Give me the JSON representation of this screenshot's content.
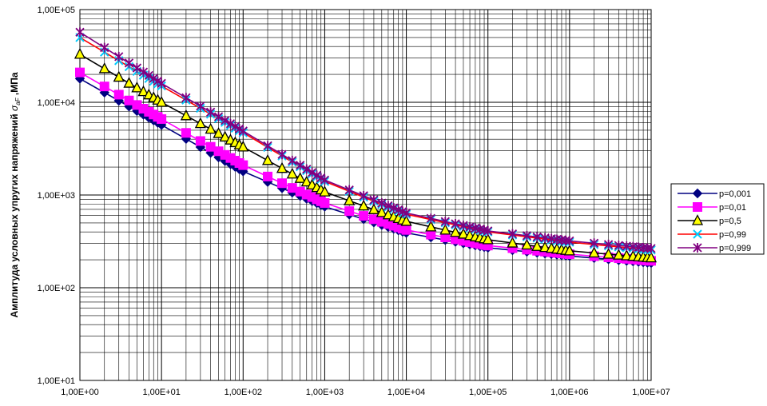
{
  "chart_data": {
    "type": "line",
    "title": "",
    "xlabel": "",
    "ylabel": "Амплитуда условных упругих напряжений σaF ,МПа",
    "ylabel_parts": {
      "prefix": "Амплитуда условных упругих напряжений ",
      "symbol": "σ",
      "subscript": "aF",
      "suffix": " ,МПа"
    },
    "x_scale": "log",
    "y_scale": "log",
    "xlim": [
      1,
      10000000
    ],
    "ylim": [
      10,
      100000
    ],
    "x_tick_labels": [
      "1,00E+00",
      "1,00E+01",
      "1,00E+02",
      "1,00E+03",
      "1,00E+04",
      "1,00E+05",
      "1,00E+06",
      "1,00E+07"
    ],
    "y_tick_labels": [
      "1,00E+01",
      "1,00E+02",
      "1,00E+03",
      "1,00E+04",
      "1,00E+05"
    ],
    "grid": "major and minor",
    "legend_position": "right",
    "series": [
      {
        "name": "p=0,001",
        "color": "#000080",
        "marker": "diamond",
        "x": [
          1,
          10,
          100,
          1000,
          10000,
          100000,
          1000000,
          10000000
        ],
        "y": [
          18000,
          5700,
          1800,
          750,
          390,
          270,
          220,
          185
        ]
      },
      {
        "name": "p=0,01",
        "color": "#ff00ff",
        "marker": "square",
        "x": [
          1,
          10,
          100,
          1000,
          10000,
          100000,
          1000000,
          10000000
        ],
        "y": [
          21000,
          6600,
          2100,
          820,
          420,
          285,
          230,
          195
        ]
      },
      {
        "name": "p=0,5",
        "color": "#000000",
        "marker": "triangle",
        "x": [
          1,
          10,
          100,
          1000,
          10000,
          100000,
          1000000,
          10000000
        ],
        "y": [
          33000,
          10000,
          3300,
          1080,
          520,
          330,
          250,
          210
        ]
      },
      {
        "name": "p=0,99",
        "color": "#ff0000",
        "marker": "x",
        "marker_color": "#00ccff",
        "x": [
          1,
          10,
          100,
          1000,
          10000,
          100000,
          1000000,
          10000000
        ],
        "y": [
          50000,
          15000,
          4700,
          1400,
          620,
          400,
          310,
          255
        ]
      },
      {
        "name": "p=0,999",
        "color": "#800080",
        "marker": "star",
        "x": [
          1,
          10,
          100,
          1000,
          10000,
          100000,
          1000000,
          10000000
        ],
        "y": [
          57000,
          16000,
          4900,
          1450,
          640,
          410,
          320,
          265
        ]
      }
    ]
  }
}
